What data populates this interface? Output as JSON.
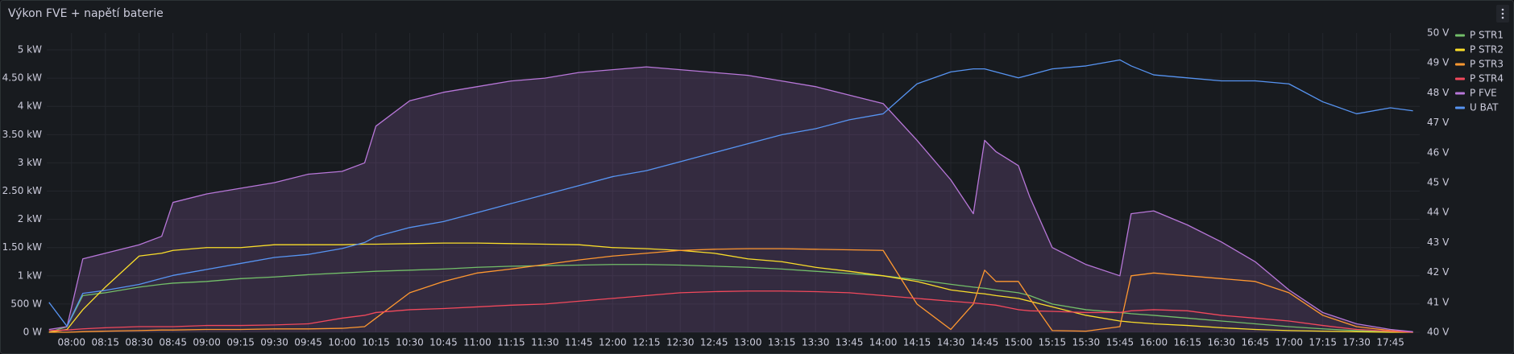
{
  "chart_data": {
    "type": "line",
    "title": "Výkon FVE + napětí baterie",
    "x": [
      "07:50",
      "07:58",
      "08:05",
      "08:15",
      "08:30",
      "08:40",
      "08:45",
      "09:00",
      "09:15",
      "09:30",
      "09:45",
      "10:00",
      "10:10",
      "10:15",
      "10:30",
      "10:45",
      "11:00",
      "11:15",
      "11:30",
      "11:45",
      "12:00",
      "12:15",
      "12:30",
      "12:45",
      "13:00",
      "13:15",
      "13:30",
      "13:45",
      "14:00",
      "14:15",
      "14:30",
      "14:40",
      "14:45",
      "14:50",
      "15:00",
      "15:05",
      "15:15",
      "15:30",
      "15:45",
      "15:50",
      "16:00",
      "16:15",
      "16:30",
      "16:45",
      "17:00",
      "17:15",
      "17:30",
      "17:45",
      "17:55"
    ],
    "xlim": [
      "07:49",
      "17:58"
    ],
    "xticks": [
      "08:00",
      "08:15",
      "08:30",
      "08:45",
      "09:00",
      "09:15",
      "09:30",
      "09:45",
      "10:00",
      "10:15",
      "10:30",
      "10:45",
      "11:00",
      "11:15",
      "11:30",
      "11:45",
      "12:00",
      "12:15",
      "12:30",
      "12:45",
      "13:00",
      "13:15",
      "13:30",
      "13:45",
      "14:00",
      "14:15",
      "14:30",
      "14:45",
      "15:00",
      "15:15",
      "15:30",
      "15:45",
      "16:00",
      "16:15",
      "16:30",
      "16:45",
      "17:00",
      "17:15",
      "17:30",
      "17:45"
    ],
    "ylim": [
      0,
      5300
    ],
    "yticks": [
      {
        "value": 0,
        "label": "0 W"
      },
      {
        "value": 500,
        "label": "500 W"
      },
      {
        "value": 1000,
        "label": "1 kW"
      },
      {
        "value": 1500,
        "label": "1.50 kW"
      },
      {
        "value": 2000,
        "label": "2 kW"
      },
      {
        "value": 2500,
        "label": "2.50 kW"
      },
      {
        "value": 3000,
        "label": "3 kW"
      },
      {
        "value": 3500,
        "label": "3.50 kW"
      },
      {
        "value": 4000,
        "label": "4 kW"
      },
      {
        "value": 4500,
        "label": "4.50 kW"
      },
      {
        "value": 5000,
        "label": "5 kW"
      }
    ],
    "y2lim": [
      40,
      50
    ],
    "y2ticks": [
      {
        "value": 40,
        "label": "40 V"
      },
      {
        "value": 41,
        "label": "41 V"
      },
      {
        "value": 42,
        "label": "42 V"
      },
      {
        "value": 43,
        "label": "43 V"
      },
      {
        "value": 44,
        "label": "44 V"
      },
      {
        "value": 45,
        "label": "45 V"
      },
      {
        "value": 46,
        "label": "46 V"
      },
      {
        "value": 47,
        "label": "47 V"
      },
      {
        "value": 48,
        "label": "48 V"
      },
      {
        "value": 49,
        "label": "49 V"
      },
      {
        "value": 50,
        "label": "50 V"
      }
    ],
    "grid": true,
    "legend": "right",
    "series": [
      {
        "name": "P STR1",
        "color": "#73bf69",
        "values": [
          0,
          100,
          650,
          700,
          800,
          850,
          870,
          900,
          950,
          980,
          1020,
          1050,
          1070,
          1080,
          1100,
          1120,
          1150,
          1170,
          1180,
          1190,
          1200,
          1200,
          1190,
          1170,
          1150,
          1120,
          1080,
          1040,
          1000,
          930,
          850,
          800,
          780,
          750,
          700,
          650,
          500,
          400,
          350,
          330,
          300,
          250,
          200,
          150,
          100,
          60,
          30,
          10,
          0
        ]
      },
      {
        "name": "P STR2",
        "color": "#fade2a",
        "values": [
          0,
          50,
          400,
          800,
          1350,
          1400,
          1450,
          1500,
          1500,
          1550,
          1550,
          1550,
          1560,
          1560,
          1570,
          1580,
          1580,
          1570,
          1560,
          1550,
          1500,
          1480,
          1450,
          1400,
          1300,
          1250,
          1150,
          1080,
          1000,
          900,
          750,
          700,
          680,
          650,
          600,
          550,
          450,
          300,
          200,
          180,
          150,
          120,
          80,
          50,
          30,
          20,
          10,
          0,
          0
        ]
      },
      {
        "name": "P STR3",
        "color": "#ff9830",
        "values": [
          0,
          0,
          10,
          20,
          30,
          40,
          40,
          50,
          50,
          60,
          60,
          70,
          100,
          250,
          700,
          900,
          1050,
          1120,
          1200,
          1280,
          1350,
          1400,
          1450,
          1470,
          1480,
          1480,
          1470,
          1460,
          1450,
          500,
          50,
          500,
          1100,
          900,
          900,
          600,
          30,
          20,
          100,
          1000,
          1050,
          1000,
          950,
          900,
          700,
          300,
          100,
          30,
          0
        ]
      },
      {
        "name": "P STR4",
        "color": "#f2495c",
        "values": [
          30,
          40,
          60,
          80,
          100,
          100,
          100,
          120,
          120,
          130,
          150,
          250,
          300,
          350,
          400,
          420,
          450,
          480,
          500,
          550,
          600,
          650,
          700,
          720,
          730,
          730,
          720,
          700,
          650,
          600,
          550,
          520,
          500,
          480,
          400,
          380,
          370,
          350,
          350,
          380,
          400,
          380,
          300,
          250,
          200,
          120,
          50,
          20,
          0
        ]
      },
      {
        "name": "P FVE",
        "color": "#b877d9",
        "fill": true,
        "values": [
          50,
          100,
          1300,
          1400,
          1550,
          1700,
          2300,
          2450,
          2550,
          2650,
          2800,
          2850,
          3000,
          3650,
          4100,
          4250,
          4350,
          4450,
          4500,
          4600,
          4650,
          4700,
          4650,
          4600,
          4550,
          4450,
          4350,
          4200,
          4050,
          3400,
          2700,
          2100,
          3400,
          3200,
          2950,
          2400,
          1500,
          1200,
          1000,
          2100,
          2150,
          1900,
          1600,
          1250,
          750,
          350,
          150,
          50,
          10
        ]
      },
      {
        "name": "U BAT",
        "color": "#5794f2",
        "axis": "y2",
        "values": [
          41.0,
          40.2,
          41.3,
          41.4,
          41.6,
          41.8,
          41.9,
          42.1,
          42.3,
          42.5,
          42.6,
          42.8,
          43.0,
          43.2,
          43.5,
          43.7,
          44.0,
          44.3,
          44.6,
          44.9,
          45.2,
          45.4,
          45.7,
          46.0,
          46.3,
          46.6,
          46.8,
          47.1,
          47.3,
          48.3,
          48.7,
          48.8,
          48.8,
          48.7,
          48.5,
          48.6,
          48.8,
          48.9,
          49.1,
          48.9,
          48.6,
          48.5,
          48.4,
          48.4,
          48.3,
          47.7,
          47.3,
          47.5,
          47.4
        ]
      }
    ]
  }
}
